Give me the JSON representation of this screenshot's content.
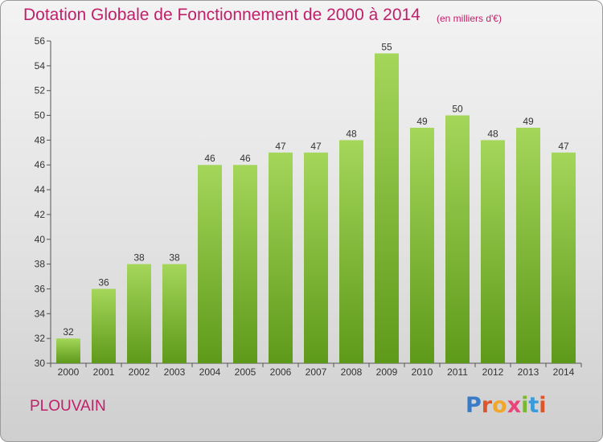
{
  "header": {
    "title": "Dotation Globale de Fonctionnement de 2000 à 2014",
    "unit": "(en milliers d'€)"
  },
  "footer": {
    "commune": "PLOUVAIN",
    "logo_letters": [
      "P",
      "r",
      "o",
      "x",
      "i",
      "t",
      "i"
    ],
    "logo_colors": [
      "#3a7bc8",
      "#e0542a",
      "#f2a62a",
      "#e8447a",
      "#7ab82e",
      "#3a9bd8",
      "#e0542a"
    ]
  },
  "colors": {
    "bar_top": "#a4d65a",
    "bar_bottom": "#5e9a1a",
    "text": "#c0206a"
  },
  "chart_data": {
    "type": "bar",
    "title": "Dotation Globale de Fonctionnement de 2000 à 2014",
    "ylabel": "en milliers d'€",
    "xlabel": "",
    "categories": [
      "2000",
      "2001",
      "2002",
      "2003",
      "2004",
      "2005",
      "2006",
      "2007",
      "2008",
      "2009",
      "2010",
      "2011",
      "2012",
      "2013",
      "2014"
    ],
    "values": [
      32,
      36,
      38,
      38,
      46,
      46,
      47,
      47,
      48,
      55,
      49,
      50,
      48,
      49,
      47
    ],
    "ylim": [
      30,
      56
    ],
    "yticks": [
      30,
      32,
      34,
      36,
      38,
      40,
      42,
      44,
      46,
      48,
      50,
      52,
      54,
      56
    ],
    "grid": false,
    "legend": "none"
  }
}
